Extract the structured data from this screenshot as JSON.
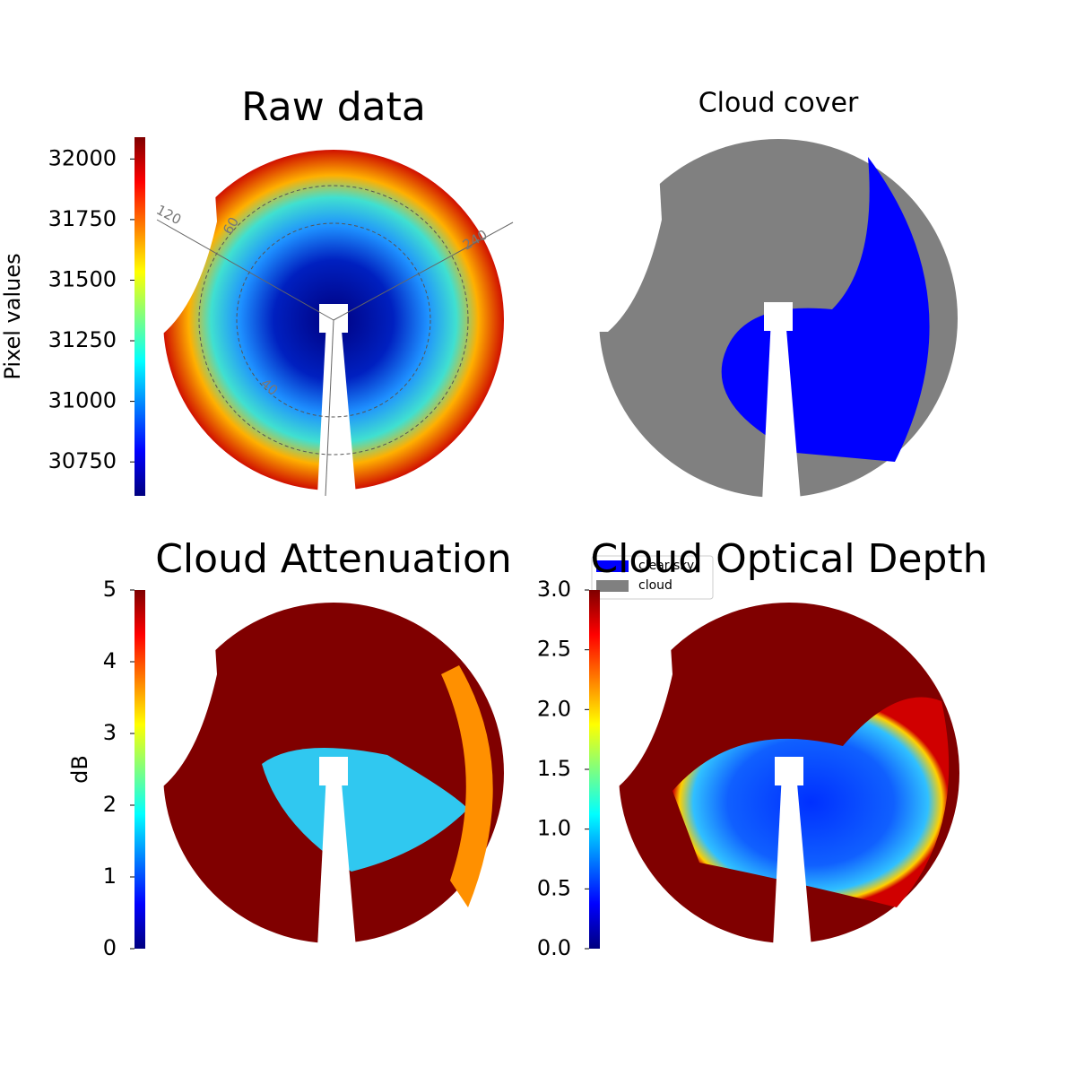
{
  "chart_data": [
    {
      "type": "image",
      "title": "Raw data",
      "ylabel": "Pixel values",
      "colormap": "jet",
      "ylim": [
        30610,
        32090
      ],
      "yticks": [
        30750,
        31000,
        31250,
        31500,
        31750,
        32000
      ],
      "annotations": [
        "120",
        "60",
        "240",
        "40"
      ]
    },
    {
      "type": "image",
      "title": "Cloud cover",
      "legend": [
        {
          "name": "clear sky",
          "color": "#0000ff"
        },
        {
          "name": "cloud",
          "color": "#808080"
        }
      ]
    },
    {
      "type": "image",
      "title": "Cloud Attenuation",
      "ylabel": "dB",
      "colormap": "jet",
      "ylim": [
        0,
        5
      ],
      "yticks": [
        0,
        1,
        2,
        3,
        4,
        5
      ]
    },
    {
      "type": "image",
      "title": "Cloud Optical Depth",
      "colormap": "jet",
      "ylim": [
        0,
        3
      ],
      "yticks": [
        {
          "value": 0,
          "label": "0.0"
        },
        0.5,
        {
          "value": 1,
          "label": "1.0"
        },
        1.5,
        {
          "value": 2,
          "label": "2.0"
        },
        2.5,
        {
          "value": 3,
          "label": "3.0"
        }
      ]
    }
  ]
}
